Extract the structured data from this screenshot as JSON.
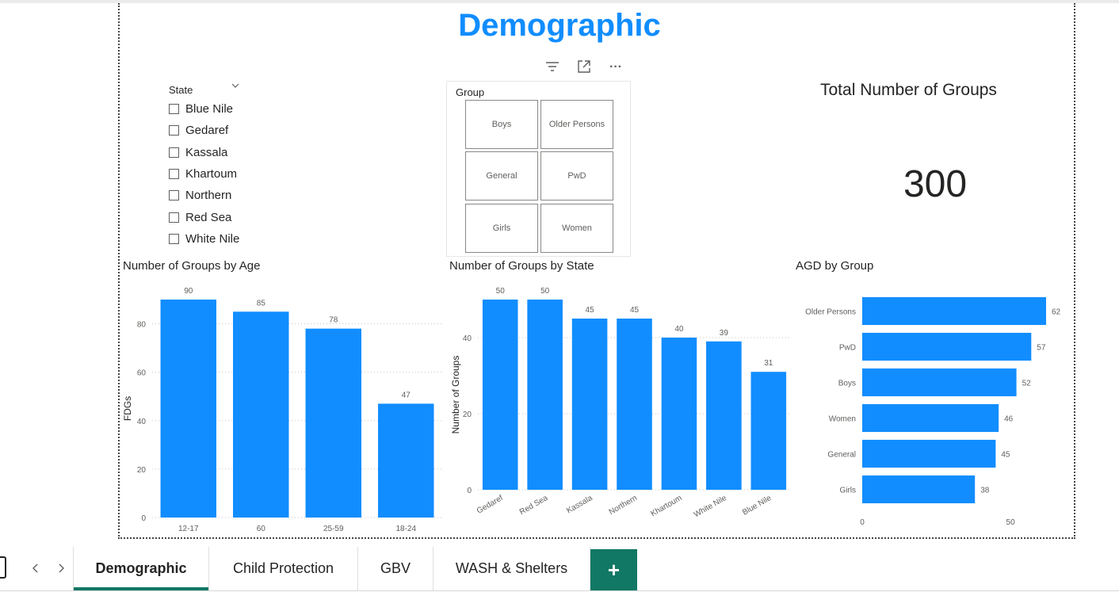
{
  "report": {
    "title": "Demographic"
  },
  "visual_actions": [
    {
      "icon": "filter-icon"
    },
    {
      "icon": "focus-mode-icon"
    },
    {
      "icon": "more-options-icon",
      "label": "···"
    }
  ],
  "state_slicer": {
    "header": "State",
    "items": [
      "Blue Nile",
      "Gedaref",
      "Kassala",
      "Khartoum",
      "Northern",
      "Red Sea",
      "White Nile"
    ]
  },
  "group_slicer": {
    "header": "Group",
    "tiles": [
      "Boys",
      "Older Persons",
      "General",
      "PwD",
      "Girls",
      "Women"
    ]
  },
  "card": {
    "title": "Total Number of Groups",
    "value": "300"
  },
  "chart_data": [
    {
      "type": "bar",
      "title": "Number of Groups by Age",
      "categories": [
        "12-17",
        "60",
        "25-59",
        "18-24"
      ],
      "values": [
        90,
        85,
        78,
        47
      ],
      "xlabel": "",
      "ylabel": "FDGs",
      "ylim": [
        0,
        90
      ],
      "yticks": [
        0,
        20,
        40,
        60,
        80
      ],
      "grid": true,
      "color": "#118DFF"
    },
    {
      "type": "bar",
      "title": "Number of Groups by State",
      "categories": [
        "Gedaref",
        "Red Sea",
        "Kassala",
        "Northern",
        "Khartoum",
        "White Nile",
        "Blue Nile"
      ],
      "values": [
        50,
        50,
        45,
        45,
        40,
        39,
        31
      ],
      "xlabel": "",
      "ylabel": "Number of Groups",
      "ylim": [
        0,
        50
      ],
      "yticks": [
        0,
        20,
        40
      ],
      "grid": true,
      "color": "#118DFF"
    },
    {
      "type": "bar",
      "orientation": "horizontal",
      "title": "AGD by Group",
      "categories": [
        "Older Persons",
        "PwD",
        "Boys",
        "Women",
        "General",
        "Girls"
      ],
      "values": [
        62,
        57,
        52,
        46,
        45,
        38
      ],
      "xlabel": "",
      "ylabel": "",
      "xlim": [
        0,
        62
      ],
      "xticks": [
        0,
        50
      ],
      "grid": false,
      "color": "#118DFF"
    }
  ],
  "tabs": [
    {
      "label": "Demographic",
      "active": true
    },
    {
      "label": "Child Protection",
      "active": false
    },
    {
      "label": "GBV",
      "active": false
    },
    {
      "label": "WASH & Shelters",
      "active": false
    }
  ],
  "add_tab": {
    "label": "+"
  },
  "colors": {
    "accent": "#118DFF",
    "tab_accent": "#117865"
  }
}
